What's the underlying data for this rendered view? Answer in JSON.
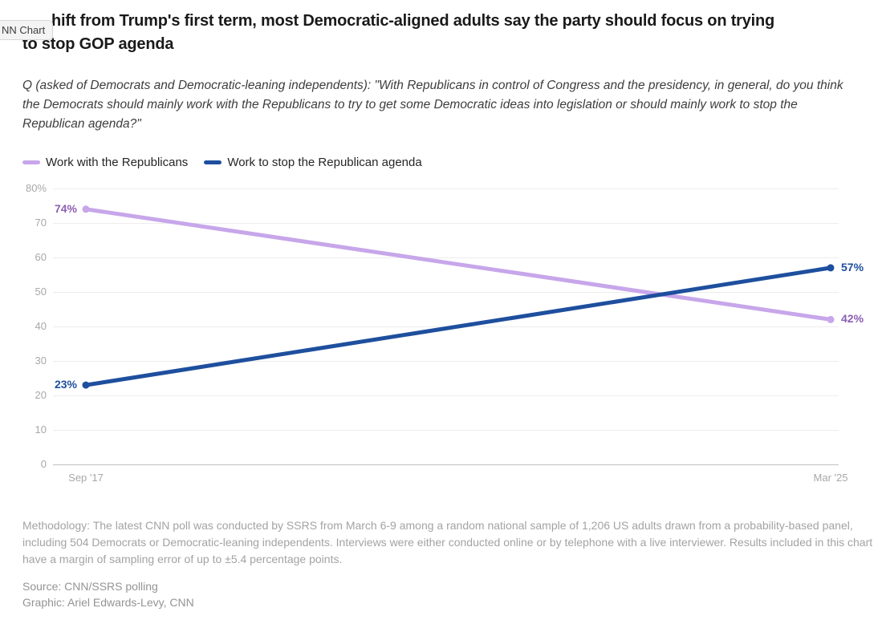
{
  "badge": {
    "label": "NN Chart"
  },
  "header": {
    "title_line1": "hift from Trump's first term, most Democratic-aligned adults say the party should focus on trying",
    "title_line2": "to stop GOP agenda",
    "question": "Q (asked of Democrats and Democratic-leaning independents): \"With Republicans in control of Congress and the presidency, in general, do you think the Democrats should mainly work with the Republicans to try to get some Democratic ideas into legislation or should mainly work to stop the Republican agenda?\""
  },
  "legend": {
    "items": [
      {
        "label": "Work with the Republicans",
        "color": "#c7a6ea"
      },
      {
        "label": "Work to stop the Republican agenda",
        "color": "#1e4f9e"
      }
    ]
  },
  "chart_data": {
    "type": "line",
    "x": [
      "Sep '17",
      "Mar '25"
    ],
    "series": [
      {
        "name": "Work with the Republicans",
        "values": [
          74,
          42
        ],
        "color": "#c7a6ea",
        "label_color": "#8b5fb5"
      },
      {
        "name": "Work to stop the Republican agenda",
        "values": [
          23,
          57
        ],
        "color": "#1e4f9e",
        "label_color": "#1e4f9e"
      }
    ],
    "ylim": [
      0,
      80
    ],
    "yticks": [
      {
        "v": 80,
        "label": "80%"
      },
      {
        "v": 70,
        "label": "70"
      },
      {
        "v": 60,
        "label": "60"
      },
      {
        "v": 50,
        "label": "50"
      },
      {
        "v": 40,
        "label": "40"
      },
      {
        "v": 30,
        "label": "30"
      },
      {
        "v": 20,
        "label": "20"
      },
      {
        "v": 10,
        "label": "10"
      },
      {
        "v": 0,
        "label": "0"
      }
    ],
    "grid": true,
    "legend_position": "top",
    "colors": {
      "grid": "#ededed",
      "zero_line": "#c2c2c2",
      "tick_text": "#a8a8a8"
    }
  },
  "footer": {
    "methodology": "Methodology: The latest CNN poll was conducted by SSRS from March 6-9 among a random national sample of 1,206 US adults drawn from a probability-based panel, including 504 Democrats or Democratic-leaning independents. Interviews were either conducted online or by telephone with a live interviewer. Results included in this chart have a margin of sampling error of up to ±5.4 percentage points.",
    "source": "Source: CNN/SSRS polling",
    "credit": "Graphic: Ariel Edwards-Levy, CNN"
  }
}
